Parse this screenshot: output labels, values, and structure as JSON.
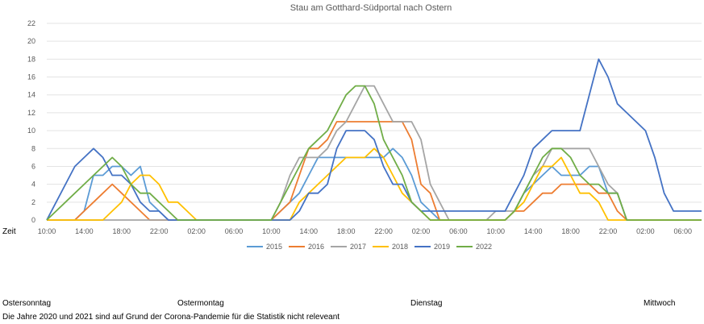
{
  "chart_data": {
    "type": "line",
    "title": "Stau am Gotthard-Südportal nach Ostern",
    "xlabel": "Zeit",
    "ylabel": "",
    "ylim": [
      0,
      22
    ],
    "yticks": [
      0,
      2,
      4,
      6,
      8,
      10,
      12,
      14,
      16,
      18,
      20,
      22
    ],
    "x_unit": "hours from Ostersonntag 10:00",
    "x_tick_labels": [
      "10:00",
      "14:00",
      "18:00",
      "22:00",
      "02:00",
      "06:00",
      "10:00",
      "14:00",
      "18:00",
      "22:00",
      "02:00",
      "06:00",
      "10:00",
      "14:00",
      "18:00",
      "22:00",
      "02:00",
      "06:00"
    ],
    "x_range": [
      0,
      70
    ],
    "grid": "horizontal",
    "legend": "bottom",
    "series": [
      {
        "name": "2015",
        "color": "#5B9BD5",
        "x": [
          0,
          3,
          4,
          5,
          6,
          7,
          8,
          9,
          10,
          11,
          12,
          13,
          14,
          15,
          16,
          24,
          25,
          26,
          27,
          28,
          29,
          30,
          31,
          32,
          33,
          34,
          35,
          36,
          37,
          38,
          39,
          40,
          41,
          42,
          43,
          44,
          45,
          46,
          47,
          48,
          49,
          50,
          51,
          52,
          53,
          54,
          55,
          56,
          57,
          58,
          59,
          60,
          61,
          62,
          63,
          64,
          70
        ],
        "y": [
          0,
          0,
          1,
          5,
          5,
          6,
          6,
          5,
          6,
          2,
          1,
          0,
          0,
          0,
          0,
          0,
          1,
          2,
          3,
          5,
          7,
          7,
          7,
          7,
          7,
          7,
          7,
          7,
          8,
          7,
          5,
          2,
          1,
          0,
          0,
          0,
          0,
          0,
          0,
          0,
          0,
          1,
          3,
          4,
          5,
          6,
          5,
          5,
          5,
          6,
          6,
          3,
          3,
          0,
          0,
          0,
          0
        ]
      },
      {
        "name": "2016",
        "color": "#ED7D31",
        "x": [
          0,
          3,
          4,
          5,
          6,
          7,
          8,
          9,
          10,
          11,
          12,
          13,
          14,
          15,
          16,
          24,
          25,
          26,
          27,
          28,
          29,
          30,
          31,
          32,
          33,
          34,
          35,
          36,
          37,
          38,
          39,
          40,
          41,
          42,
          43,
          44,
          45,
          46,
          47,
          48,
          49,
          50,
          51,
          52,
          53,
          54,
          55,
          56,
          57,
          58,
          59,
          60,
          61,
          62,
          63,
          64,
          70
        ],
        "y": [
          0,
          0,
          1,
          2,
          3,
          4,
          3,
          2,
          1,
          0,
          0,
          0,
          0,
          0,
          0,
          0,
          1,
          2,
          5,
          8,
          8,
          9,
          11,
          11,
          11,
          11,
          11,
          11,
          11,
          11,
          9,
          4,
          3,
          0,
          0,
          0,
          0,
          0,
          0,
          0,
          0,
          1,
          1,
          2,
          3,
          3,
          4,
          4,
          4,
          4,
          3,
          3,
          1,
          0,
          0,
          0,
          0
        ]
      },
      {
        "name": "2017",
        "color": "#A5A5A5",
        "x": [
          0,
          3,
          4,
          5,
          6,
          7,
          8,
          9,
          10,
          11,
          12,
          13,
          14,
          15,
          16,
          24,
          25,
          26,
          27,
          28,
          29,
          30,
          31,
          32,
          33,
          34,
          35,
          36,
          37,
          38,
          39,
          40,
          41,
          42,
          43,
          44,
          45,
          46,
          47,
          48,
          49,
          50,
          51,
          52,
          53,
          54,
          55,
          56,
          57,
          58,
          59,
          60,
          61,
          62,
          63,
          64,
          70
        ],
        "y": [
          0,
          0,
          0,
          0,
          0,
          0,
          0,
          0,
          0,
          0,
          0,
          0,
          0,
          0,
          0,
          0,
          2,
          5,
          7,
          7,
          7,
          8,
          10,
          11,
          13,
          15,
          15,
          13,
          11,
          11,
          11,
          9,
          4,
          2,
          0,
          0,
          0,
          0,
          0,
          1,
          1,
          1,
          3,
          5,
          6,
          8,
          8,
          8,
          8,
          8,
          6,
          4,
          3,
          0,
          0,
          0,
          0
        ]
      },
      {
        "name": "2018",
        "color": "#FFC000",
        "x": [
          0,
          3,
          4,
          5,
          6,
          7,
          8,
          9,
          10,
          11,
          12,
          13,
          14,
          15,
          16,
          24,
          25,
          26,
          27,
          28,
          29,
          30,
          31,
          32,
          33,
          34,
          35,
          36,
          37,
          38,
          39,
          40,
          41,
          42,
          43,
          44,
          45,
          46,
          47,
          48,
          49,
          50,
          51,
          52,
          53,
          54,
          55,
          56,
          57,
          58,
          59,
          60,
          61,
          62,
          63,
          64,
          70
        ],
        "y": [
          0,
          0,
          0,
          0,
          0,
          1,
          2,
          4,
          5,
          5,
          4,
          2,
          2,
          1,
          0,
          0,
          0,
          0,
          2,
          3,
          4,
          5,
          6,
          7,
          7,
          7,
          8,
          7,
          5,
          3,
          2,
          1,
          0,
          0,
          0,
          0,
          0,
          0,
          0,
          0,
          0,
          1,
          2,
          4,
          6,
          6,
          7,
          5,
          3,
          3,
          2,
          0,
          0,
          0,
          0,
          0,
          0
        ]
      },
      {
        "name": "2019",
        "color": "#4472C4",
        "x": [
          0,
          3,
          4,
          5,
          6,
          7,
          8,
          9,
          10,
          11,
          12,
          13,
          14,
          15,
          16,
          24,
          25,
          26,
          27,
          28,
          29,
          30,
          31,
          32,
          33,
          34,
          35,
          36,
          37,
          38,
          39,
          40,
          41,
          42,
          43,
          44,
          45,
          46,
          47,
          48,
          49,
          50,
          51,
          52,
          53,
          54,
          55,
          56,
          57,
          58,
          59,
          60,
          61,
          62,
          63,
          64,
          65,
          66,
          67,
          68,
          69,
          70
        ],
        "y": [
          0,
          6,
          7,
          8,
          7,
          5,
          5,
          4,
          2,
          1,
          1,
          0,
          0,
          0,
          0,
          0,
          0,
          0,
          1,
          3,
          3,
          4,
          8,
          10,
          10,
          10,
          9,
          6,
          4,
          4,
          2,
          1,
          1,
          1,
          1,
          1,
          1,
          1,
          1,
          1,
          1,
          3,
          5,
          8,
          9,
          10,
          10,
          10,
          10,
          14,
          18,
          16,
          13,
          12,
          11,
          10,
          7,
          3,
          1,
          1,
          1,
          1
        ]
      },
      {
        "name": "2022",
        "color": "#70AD47",
        "x": [
          0,
          3,
          4,
          5,
          6,
          7,
          8,
          9,
          10,
          11,
          12,
          13,
          14,
          15,
          16,
          24,
          25,
          26,
          27,
          28,
          29,
          30,
          31,
          32,
          33,
          34,
          35,
          36,
          37,
          38,
          39,
          40,
          41,
          42,
          43,
          44,
          45,
          46,
          47,
          48,
          49,
          50,
          51,
          52,
          53,
          54,
          55,
          56,
          57,
          58,
          59,
          60,
          61,
          62,
          63,
          64,
          70
        ],
        "y": [
          0,
          3,
          4,
          5,
          6,
          7,
          6,
          4,
          3,
          3,
          2,
          1,
          0,
          0,
          0,
          0,
          2,
          4,
          6,
          8,
          9,
          10,
          12,
          14,
          15,
          15,
          13,
          9,
          7,
          5,
          2,
          1,
          0,
          0,
          0,
          0,
          0,
          0,
          0,
          0,
          0,
          1,
          3,
          5,
          7,
          8,
          8,
          7,
          5,
          4,
          4,
          3,
          3,
          0,
          0,
          0,
          0
        ]
      }
    ]
  },
  "days": {
    "sunday": "Ostersonntag",
    "monday": "Ostermontag",
    "tuesday": "Dienstag",
    "wednesday": "Mittwoch"
  },
  "footnote": "Die Jahre 2020 und 2021 sind auf Grund der Corona-Pandemie für die Statistik nicht releveant"
}
